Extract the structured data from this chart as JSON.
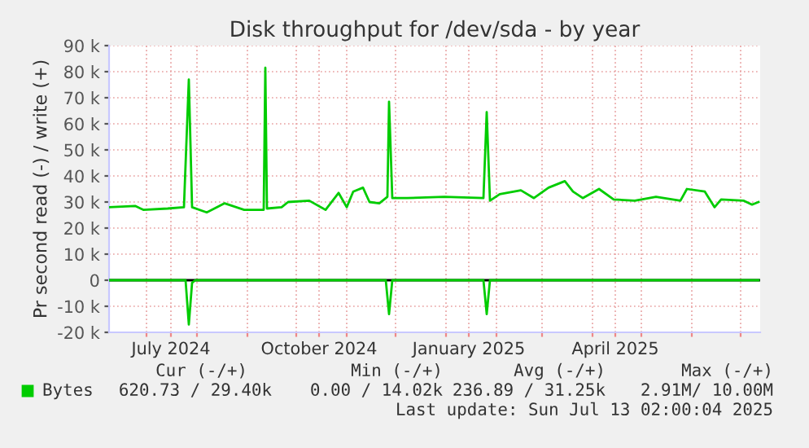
{
  "chart_data": {
    "type": "line",
    "title": "Disk throughput for /dev/sda - by year",
    "ylabel": "Pr second read (-) / write (+)",
    "series": [
      {
        "name": "Bytes",
        "color": "#00cc00",
        "x": [
          "2024-06-08",
          "2024-06-24",
          "2024-06-29",
          "2024-07-14",
          "2024-07-24",
          "2024-07-27",
          "2024-07-29",
          "2024-08-07",
          "2024-08-18",
          "2024-08-30",
          "2024-09-11",
          "2024-09-12",
          "2024-09-13",
          "2024-09-22",
          "2024-09-26",
          "2024-10-09",
          "2024-10-19",
          "2024-10-27",
          "2024-11-01",
          "2024-11-05",
          "2024-11-11",
          "2024-11-15",
          "2024-11-21",
          "2024-11-26",
          "2024-11-27",
          "2024-11-29",
          "2024-12-08",
          "2024-12-31",
          "2025-01-24",
          "2025-01-26",
          "2025-01-28",
          "2025-02-03",
          "2025-02-16",
          "2025-02-24",
          "2025-03-05",
          "2025-03-15",
          "2025-03-20",
          "2025-03-26",
          "2025-04-05",
          "2025-04-14",
          "2025-04-27",
          "2025-05-10",
          "2025-05-25",
          "2025-05-29",
          "2025-06-09",
          "2025-06-15",
          "2025-06-19",
          "2025-07-03",
          "2025-07-08",
          "2025-07-12"
        ],
        "values": [
          28000,
          28500,
          27000,
          27500,
          28000,
          77000,
          28000,
          26000,
          29500,
          27000,
          27000,
          81500,
          27500,
          28000,
          30000,
          30500,
          27000,
          33500,
          28000,
          34000,
          35500,
          30000,
          29500,
          32000,
          68500,
          31500,
          31500,
          32000,
          31500,
          64500,
          30500,
          33000,
          34500,
          31500,
          35500,
          38000,
          34000,
          31500,
          35000,
          31000,
          30500,
          32000,
          30500,
          35000,
          34000,
          28000,
          31000,
          30500,
          29000,
          30000
        ]
      },
      {
        "color": "#00cc00",
        "x": [
          "2024-06-08",
          "2024-07-25",
          "2024-07-27",
          "2024-07-29",
          "2024-07-31",
          "2024-11-25",
          "2024-11-27",
          "2024-11-29",
          "2025-01-24",
          "2025-01-26",
          "2025-01-28",
          "2025-07-12"
        ],
        "values": [
          0,
          0,
          -17000,
          -1000,
          0,
          0,
          -13000,
          0,
          0,
          -13000,
          0,
          0
        ]
      }
    ],
    "xlim": [
      "2024-06-08",
      "2025-07-13"
    ],
    "xticks": [
      {
        "value": "2024-07-01",
        "label": null
      },
      {
        "value": "2024-07-16",
        "label": "July 2024"
      },
      {
        "value": "2024-08-01",
        "label": null
      },
      {
        "value": "2024-09-01",
        "label": null
      },
      {
        "value": "2024-10-01",
        "label": null
      },
      {
        "value": "2024-10-15",
        "label": "October 2024"
      },
      {
        "value": "2024-11-01",
        "label": null
      },
      {
        "value": "2024-12-01",
        "label": null
      },
      {
        "value": "2025-01-01",
        "label": null
      },
      {
        "value": "2025-01-15",
        "label": "January 2025"
      },
      {
        "value": "2025-02-01",
        "label": null
      },
      {
        "value": "2025-03-01",
        "label": null
      },
      {
        "value": "2025-04-01",
        "label": null
      },
      {
        "value": "2025-04-15",
        "label": "April 2025"
      },
      {
        "value": "2025-05-01",
        "label": null
      },
      {
        "value": "2025-06-01",
        "label": null
      },
      {
        "value": "2025-07-01",
        "label": null
      }
    ],
    "ylim": [
      -20000,
      90000
    ],
    "yticks": [
      {
        "value": -20000,
        "label": "-20 k"
      },
      {
        "value": -10000,
        "label": "-10 k"
      },
      {
        "value": 0,
        "label": "0"
      },
      {
        "value": 10000,
        "label": "10 k"
      },
      {
        "value": 20000,
        "label": "20 k"
      },
      {
        "value": 30000,
        "label": "30 k"
      },
      {
        "value": 40000,
        "label": "40 k"
      },
      {
        "value": 50000,
        "label": "50 k"
      },
      {
        "value": 60000,
        "label": "60 k"
      },
      {
        "value": 70000,
        "label": "70 k"
      },
      {
        "value": 80000,
        "label": "80 k"
      },
      {
        "value": 90000,
        "label": "90 k"
      }
    ],
    "ref_lines": [
      {
        "axis": "y",
        "value": 0,
        "color": "#000000"
      }
    ],
    "grid": true,
    "legend": "bottom",
    "marker": "none",
    "line_style": "solid",
    "annotations": [
      "Cur (-/+)",
      "Min (-/+)",
      "Avg (-/+)",
      "Max (-/+)",
      "620.73 / 29.40k",
      "0.00 / 14.02k",
      "236.89 / 31.25k",
      "2.91M/ 10.00M",
      "Last update: Sun Jul 13 02:00:04 2025"
    ]
  }
}
